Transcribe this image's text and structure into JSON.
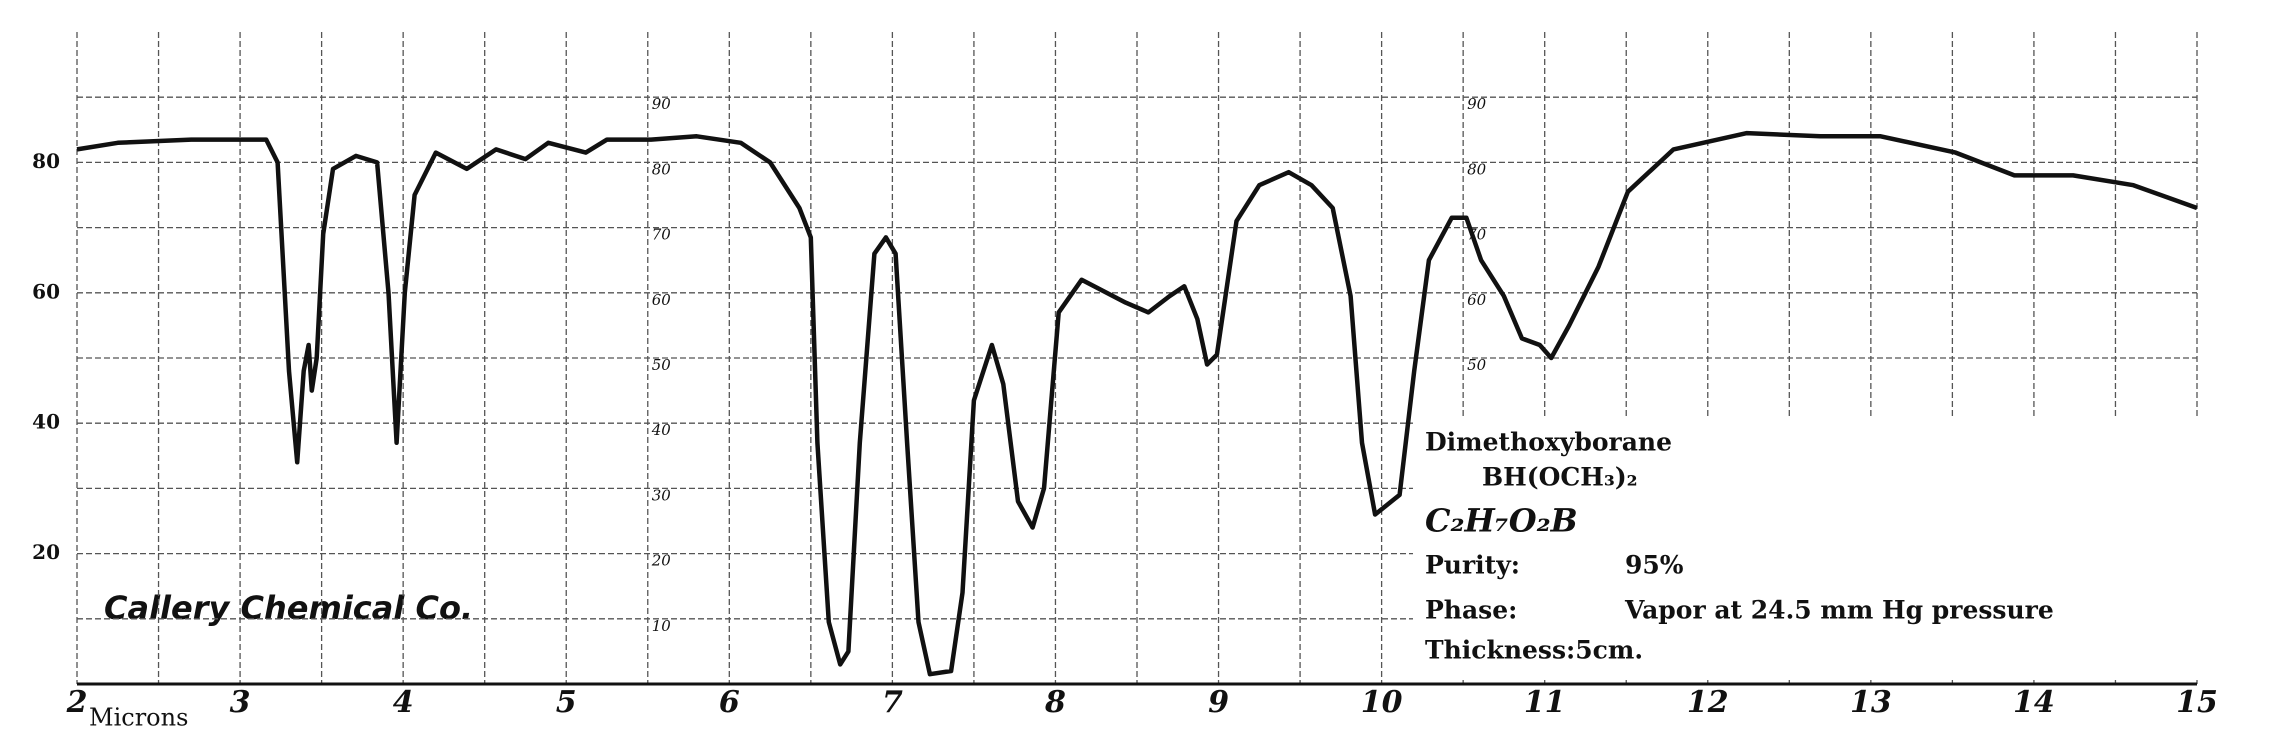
{
  "chart_data": {
    "type": "line",
    "x_label": "Microns",
    "annotation": "Callery Chemical Co.",
    "x": [
      2.0,
      2.25,
      2.7,
      3.16,
      3.23,
      3.3,
      3.35,
      3.39,
      3.42,
      3.44,
      3.47,
      3.51,
      3.57,
      3.71,
      3.84,
      3.91,
      3.96,
      4.01,
      4.07,
      4.2,
      4.39,
      4.57,
      4.75,
      4.89,
      5.12,
      5.25,
      5.52,
      5.8,
      6.07,
      6.25,
      6.43,
      6.5,
      6.54,
      6.61,
      6.68,
      6.73,
      6.8,
      6.89,
      6.96,
      7.02,
      7.09,
      7.16,
      7.23,
      7.36,
      7.43,
      7.5,
      7.61,
      7.68,
      7.77,
      7.86,
      7.93,
      8.02,
      8.16,
      8.43,
      8.57,
      8.7,
      8.79,
      8.87,
      8.93,
      8.99,
      9.11,
      9.25,
      9.43,
      9.57,
      9.7,
      9.81,
      9.88,
      9.96,
      10.11,
      10.2,
      10.29,
      10.43,
      10.52,
      10.61,
      10.75,
      10.86,
      10.97,
      11.04,
      11.15,
      11.33,
      11.51,
      11.79,
      12.24,
      12.69,
      13.06,
      13.52,
      13.88,
      14.24,
      14.61,
      15.0
    ],
    "series": [
      {
        "name": "Dimethoxyborane",
        "color": "#111111",
        "values": [
          82,
          83,
          83.5,
          83.5,
          80,
          48,
          34,
          48,
          52,
          45,
          50,
          69,
          79,
          81,
          80,
          60,
          37,
          60,
          75,
          81.5,
          79,
          82,
          80.5,
          83,
          81.5,
          83.5,
          83.5,
          84,
          83,
          80,
          73,
          68.5,
          37,
          9.5,
          3,
          5,
          37,
          66,
          68.5,
          66,
          37,
          9.5,
          1.5,
          2,
          14,
          43.5,
          52,
          46,
          28,
          24,
          30,
          57,
          62,
          58.5,
          57,
          59.5,
          61,
          56,
          49,
          50.5,
          71,
          76.5,
          78.5,
          76.5,
          73,
          59.5,
          37,
          26,
          29,
          48,
          65,
          71.5,
          71.5,
          65,
          59.5,
          53,
          52,
          50,
          55,
          64,
          75.5,
          82,
          84.5,
          84,
          84,
          81.5,
          78,
          78,
          76.5,
          73
        ]
      }
    ],
    "xlim": [
      2,
      15
    ],
    "ylim": [
      0,
      100
    ],
    "xticks": [
      2,
      3,
      4,
      5,
      6,
      7,
      8,
      9,
      10,
      11,
      12,
      13,
      14,
      15
    ],
    "yticks": [
      20,
      40,
      60,
      80
    ],
    "inner_scale": [
      90,
      80,
      70,
      60,
      50,
      40,
      30,
      20,
      10
    ],
    "inner_scale_at": [
      5.5,
      10.5
    ],
    "grid": true,
    "sample": {
      "name": "Dimethoxyborane",
      "formula": "BH(OCH₃)₂",
      "molecular": "C₂H₇O₂B",
      "purity_label": "Purity:",
      "purity": "95%",
      "phase_label": "Phase:",
      "phase": "Vapor at 24.5 mm Hg pressure",
      "thickness": "Thickness:5cm."
    }
  }
}
